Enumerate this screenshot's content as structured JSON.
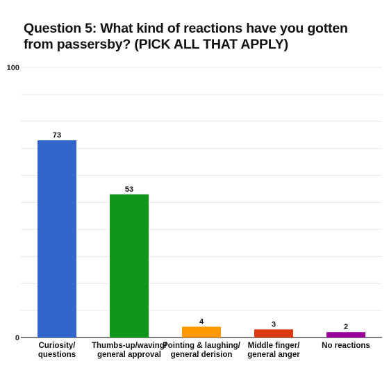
{
  "chart_data": {
    "type": "bar",
    "title_lines": [
      "Question 5: What kind of reactions have you gotten",
      "from passersby? (PICK ALL THAT APPLY)"
    ],
    "categories": [
      [
        "Curiosity/",
        "questions"
      ],
      [
        "Thumbs-up/waving/",
        "general approval"
      ],
      [
        "Pointing & laughing/",
        "general derision"
      ],
      [
        "Middle finger/",
        "general anger"
      ],
      [
        "No reactions"
      ]
    ],
    "values": [
      73,
      53,
      4,
      3,
      2
    ],
    "colors": [
      "#3266cc",
      "#109618",
      "#ff9900",
      "#dc3912",
      "#990099"
    ],
    "ylim": [
      0,
      100
    ],
    "y_tick_labels": [
      0,
      100
    ],
    "grid": true
  }
}
